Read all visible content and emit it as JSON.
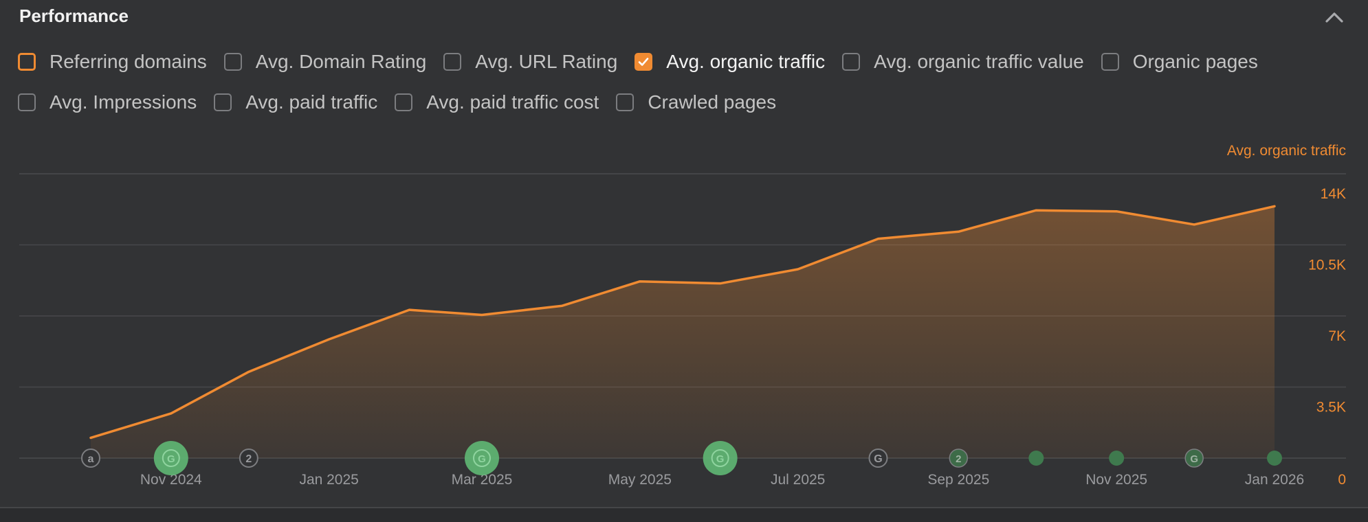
{
  "header": {
    "title": "Performance"
  },
  "metrics": {
    "row1": [
      {
        "label": "Referring domains",
        "checked": false,
        "focused": true
      },
      {
        "label": "Avg. Domain Rating",
        "checked": false
      },
      {
        "label": "Avg. URL Rating",
        "checked": false
      },
      {
        "label": "Avg. organic traffic",
        "checked": true
      },
      {
        "label": "Avg. organic traffic value",
        "checked": false
      },
      {
        "label": "Organic pages",
        "checked": false
      }
    ],
    "row2": [
      {
        "label": "Avg. Impressions",
        "checked": false
      },
      {
        "label": "Avg. paid traffic",
        "checked": false
      },
      {
        "label": "Avg. paid traffic cost",
        "checked": false
      },
      {
        "label": "Crawled pages",
        "checked": false
      }
    ]
  },
  "colors": {
    "accent": "#f08b32",
    "background": "#323335",
    "marker_green": "#5fb874"
  },
  "chart_data": {
    "type": "area",
    "series_title": "Avg. organic traffic",
    "series": [
      {
        "name": "Avg. organic traffic",
        "x": [
          "2024-10-01",
          "2024-11-01",
          "2024-12-01",
          "2025-01-01",
          "2025-02-01",
          "2025-03-01",
          "2025-04-01",
          "2025-05-01",
          "2025-06-01",
          "2025-07-01",
          "2025-08-01",
          "2025-09-01",
          "2025-10-01",
          "2025-11-01",
          "2025-12-01",
          "2026-01-01"
        ],
        "values": [
          1000,
          2200,
          4250,
          5850,
          7300,
          7050,
          7500,
          8700,
          8600,
          9300,
          10800,
          11150,
          12200,
          12150,
          11500,
          12400
        ]
      }
    ],
    "x_ticks": [
      "Nov 2024",
      "Jan 2025",
      "Mar 2025",
      "May 2025",
      "Jul 2025",
      "Sep 2025",
      "Nov 2025",
      "Jan 2026"
    ],
    "x_tick_dates": [
      "2024-11-01",
      "2025-01-01",
      "2025-03-01",
      "2025-05-01",
      "2025-07-01",
      "2025-09-01",
      "2025-11-01",
      "2026-01-01"
    ],
    "y_ticks": [
      "14K",
      "10.5K",
      "7K",
      "3.5K",
      "0"
    ],
    "y_tick_values": [
      14000,
      10500,
      7000,
      3500,
      0
    ],
    "ylim": [
      0,
      14000
    ],
    "xlim": [
      "2024-09-01",
      "2026-01-15"
    ],
    "grid": true,
    "y_axis_side": "right",
    "annotations": [
      {
        "date": "2024-10-01",
        "glyph": "a",
        "kind": "outline"
      },
      {
        "date": "2024-11-01",
        "glyph": "G",
        "kind": "large"
      },
      {
        "date": "2024-12-01",
        "glyph": "2",
        "kind": "outline"
      },
      {
        "date": "2025-03-01",
        "glyph": "G",
        "kind": "large"
      },
      {
        "date": "2025-06-01",
        "glyph": "G",
        "kind": "large"
      },
      {
        "date": "2025-08-01",
        "glyph": "G",
        "kind": "outline"
      },
      {
        "date": "2025-09-01",
        "glyph": "2",
        "kind": "small"
      },
      {
        "date": "2025-10-01",
        "glyph": "",
        "kind": "dot"
      },
      {
        "date": "2025-11-01",
        "glyph": "",
        "kind": "dot"
      },
      {
        "date": "2025-12-01",
        "glyph": "G",
        "kind": "small"
      },
      {
        "date": "2026-01-01",
        "glyph": "",
        "kind": "dot"
      }
    ]
  }
}
